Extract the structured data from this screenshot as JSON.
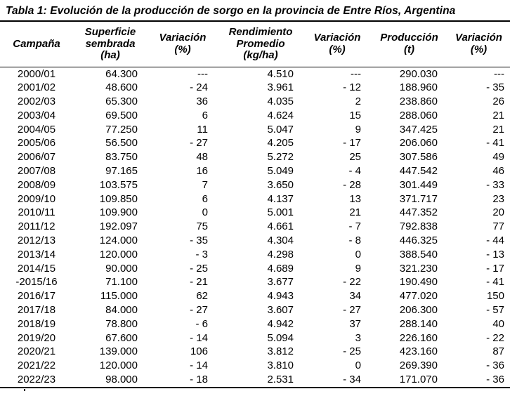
{
  "title": "Tabla 1: Evolución de la producción de sorgo en la provincia de Entre Ríos, Argentina",
  "colors": {
    "text": "#000000",
    "background": "#ffffff",
    "border": "#000000"
  },
  "table": {
    "columns": [
      {
        "label": "Campaña"
      },
      {
        "label": "Superficie\nsembrada\n(ha)"
      },
      {
        "label": "Variación\n(%)"
      },
      {
        "label": "Rendimiento\nPromedio\n(kg/ha)"
      },
      {
        "label": "Variación\n(%)"
      },
      {
        "label": "Producción\n(t)"
      },
      {
        "label": "Variación\n(%)"
      }
    ],
    "rows": [
      [
        "2000/01",
        "64.300",
        "---",
        "4.510",
        "---",
        "290.030",
        "---"
      ],
      [
        "2001/02",
        "48.600",
        "- 24",
        "3.961",
        "- 12",
        "188.960",
        "- 35"
      ],
      [
        "2002/03",
        "65.300",
        "36",
        "4.035",
        "2",
        "238.860",
        "26"
      ],
      [
        "2003/04",
        "69.500",
        "6",
        "4.624",
        "15",
        "288.060",
        "21"
      ],
      [
        "2004/05",
        "77.250",
        "11",
        "5.047",
        "9",
        "347.425",
        "21"
      ],
      [
        "2005/06",
        "56.500",
        "- 27",
        "4.205",
        "- 17",
        "206.060",
        "- 41"
      ],
      [
        "2006/07",
        "83.750",
        "48",
        "5.272",
        "25",
        "307.586",
        "49"
      ],
      [
        "2007/08",
        "97.165",
        "16",
        "5.049",
        "- 4",
        "447.542",
        "46"
      ],
      [
        "2008/09",
        "103.575",
        "7",
        "3.650",
        "- 28",
        "301.449",
        "- 33"
      ],
      [
        "2009/10",
        "109.850",
        "6",
        "4.137",
        "13",
        "371.717",
        "23"
      ],
      [
        "2010/11",
        "109.900",
        "0",
        "5.001",
        "21",
        "447.352",
        "20"
      ],
      [
        "2011/12",
        "192.097",
        "75",
        "4.661",
        "- 7",
        "792.838",
        "77"
      ],
      [
        "2012/13",
        "124.000",
        "- 35",
        "4.304",
        "- 8",
        "446.325",
        "- 44"
      ],
      [
        "2013/14",
        "120.000",
        "- 3",
        "4.298",
        "0",
        "388.540",
        "- 13"
      ],
      [
        "2014/15",
        "90.000",
        "- 25",
        "4.689",
        "9",
        "321.230",
        "- 17"
      ],
      [
        "-2015/16",
        "71.100",
        "- 21",
        "3.677",
        "- 22",
        "190.490",
        "- 41"
      ],
      [
        "2016/17",
        "115.000",
        "62",
        "4.943",
        "34",
        "477.020",
        "150"
      ],
      [
        "2017/18",
        "84.000",
        "- 27",
        "3.607",
        "- 27",
        "206.300",
        "- 57"
      ],
      [
        "2018/19",
        "78.800",
        "- 6",
        "4.942",
        "37",
        "288.140",
        "40"
      ],
      [
        "2019/20",
        "67.600",
        "- 14",
        "5.094",
        "3",
        "226.160",
        "- 22"
      ],
      [
        "2020/21",
        "139.000",
        "106",
        "3.812",
        "- 25",
        "423.160",
        "87"
      ],
      [
        "2021/22",
        "120.000",
        "- 14",
        "3.810",
        "0",
        "269.390",
        "- 36"
      ],
      [
        "2022/23",
        "98.000",
        "- 18",
        "2.531",
        "- 34",
        "171.070",
        "- 36"
      ]
    ]
  }
}
